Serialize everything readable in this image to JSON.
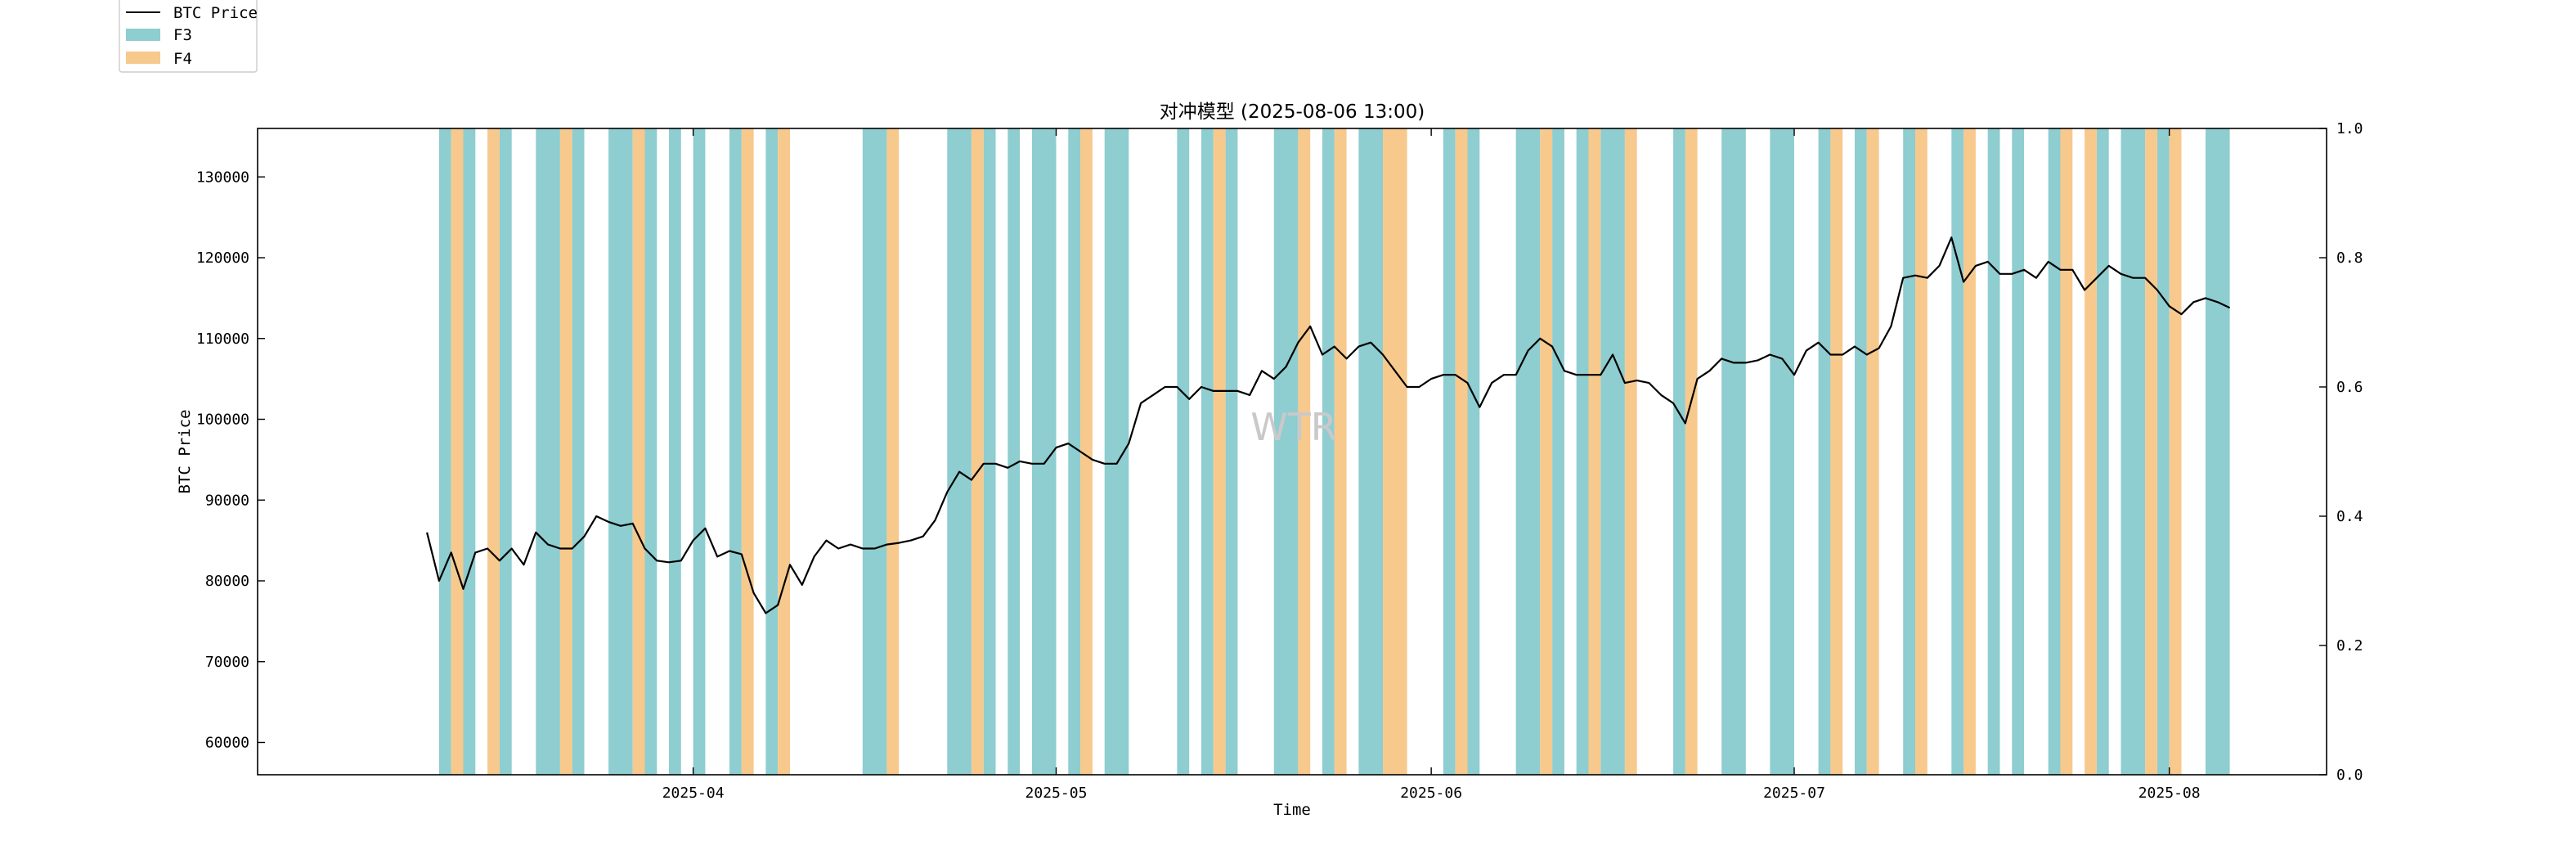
{
  "chart_data": {
    "type": "line",
    "title": "对冲模型 (2025-08-06 13:00)",
    "xlabel": "Time",
    "ylabel": "BTC Price",
    "watermark": "WTR",
    "x_tick_labels": [
      "2025-04",
      "2025-05",
      "2025-06",
      "2025-07",
      "2025-08"
    ],
    "x_ticks": [
      "2025-04-01",
      "2025-05-01",
      "2025-06-01",
      "2025-07-01",
      "2025-08-01"
    ],
    "xlim": [
      "2025-02-24",
      "2025-08-14"
    ],
    "ylim": [
      56000,
      136000
    ],
    "y_ticks": [
      60000,
      70000,
      80000,
      90000,
      100000,
      110000,
      120000,
      130000
    ],
    "y2lim": [
      0.0,
      1.0
    ],
    "y2_ticks": [
      0.0,
      0.2,
      0.4,
      0.6,
      0.8,
      1.0
    ],
    "y2_tick_labels": [
      "0.0",
      "0.2",
      "0.4",
      "0.6",
      "0.8",
      "1.0"
    ],
    "grid": false,
    "legend": {
      "placement": "top-left, above plot",
      "entries": [
        {
          "label": "BTC Price",
          "kind": "line",
          "color": "#000000"
        },
        {
          "label": "F3",
          "kind": "patch",
          "color": "#8ecdd0"
        },
        {
          "label": "F4",
          "kind": "patch",
          "color": "#f7c98d"
        }
      ]
    },
    "series": [
      {
        "name": "BTC Price",
        "color": "#000000",
        "points": [
          [
            "2025-03-10",
            86000
          ],
          [
            "2025-03-11",
            80000
          ],
          [
            "2025-03-12",
            83500
          ],
          [
            "2025-03-13",
            79000
          ],
          [
            "2025-03-14",
            83500
          ],
          [
            "2025-03-15",
            84000
          ],
          [
            "2025-03-16",
            82500
          ],
          [
            "2025-03-17",
            84000
          ],
          [
            "2025-03-18",
            82000
          ],
          [
            "2025-03-19",
            86000
          ],
          [
            "2025-03-20",
            84500
          ],
          [
            "2025-03-21",
            84000
          ],
          [
            "2025-03-22",
            84000
          ],
          [
            "2025-03-23",
            85500
          ],
          [
            "2025-03-24",
            88000
          ],
          [
            "2025-03-25",
            87300
          ],
          [
            "2025-03-26",
            86800
          ],
          [
            "2025-03-27",
            87100
          ],
          [
            "2025-03-28",
            84000
          ],
          [
            "2025-03-29",
            82500
          ],
          [
            "2025-03-30",
            82300
          ],
          [
            "2025-03-31",
            82500
          ],
          [
            "2025-04-01",
            85000
          ],
          [
            "2025-04-02",
            86500
          ],
          [
            "2025-04-03",
            83000
          ],
          [
            "2025-04-04",
            83700
          ],
          [
            "2025-04-05",
            83300
          ],
          [
            "2025-04-06",
            78500
          ],
          [
            "2025-04-07",
            76000
          ],
          [
            "2025-04-08",
            77000
          ],
          [
            "2025-04-09",
            82000
          ],
          [
            "2025-04-10",
            79500
          ],
          [
            "2025-04-11",
            83000
          ],
          [
            "2025-04-12",
            85000
          ],
          [
            "2025-04-13",
            84000
          ],
          [
            "2025-04-14",
            84500
          ],
          [
            "2025-04-15",
            84000
          ],
          [
            "2025-04-16",
            84000
          ],
          [
            "2025-04-17",
            84500
          ],
          [
            "2025-04-18",
            84700
          ],
          [
            "2025-04-19",
            85000
          ],
          [
            "2025-04-20",
            85500
          ],
          [
            "2025-04-21",
            87500
          ],
          [
            "2025-04-22",
            91000
          ],
          [
            "2025-04-23",
            93500
          ],
          [
            "2025-04-24",
            92500
          ],
          [
            "2025-04-25",
            94500
          ],
          [
            "2025-04-26",
            94500
          ],
          [
            "2025-04-27",
            94000
          ],
          [
            "2025-04-28",
            94800
          ],
          [
            "2025-04-29",
            94500
          ],
          [
            "2025-04-30",
            94500
          ],
          [
            "2025-05-01",
            96500
          ],
          [
            "2025-05-02",
            97000
          ],
          [
            "2025-05-03",
            96000
          ],
          [
            "2025-05-04",
            95000
          ],
          [
            "2025-05-05",
            94500
          ],
          [
            "2025-05-06",
            94500
          ],
          [
            "2025-05-07",
            97000
          ],
          [
            "2025-05-08",
            102000
          ],
          [
            "2025-05-09",
            103000
          ],
          [
            "2025-05-10",
            104000
          ],
          [
            "2025-05-11",
            104000
          ],
          [
            "2025-05-12",
            102500
          ],
          [
            "2025-05-13",
            104000
          ],
          [
            "2025-05-14",
            103500
          ],
          [
            "2025-05-15",
            103500
          ],
          [
            "2025-05-16",
            103500
          ],
          [
            "2025-05-17",
            103000
          ],
          [
            "2025-05-18",
            106000
          ],
          [
            "2025-05-19",
            105000
          ],
          [
            "2025-05-20",
            106500
          ],
          [
            "2025-05-21",
            109500
          ],
          [
            "2025-05-22",
            111500
          ],
          [
            "2025-05-23",
            108000
          ],
          [
            "2025-05-24",
            109000
          ],
          [
            "2025-05-25",
            107500
          ],
          [
            "2025-05-26",
            109000
          ],
          [
            "2025-05-27",
            109500
          ],
          [
            "2025-05-28",
            108000
          ],
          [
            "2025-05-29",
            106000
          ],
          [
            "2025-05-30",
            104000
          ],
          [
            "2025-05-31",
            104000
          ],
          [
            "2025-06-01",
            105000
          ],
          [
            "2025-06-02",
            105500
          ],
          [
            "2025-06-03",
            105500
          ],
          [
            "2025-06-04",
            104500
          ],
          [
            "2025-06-05",
            101500
          ],
          [
            "2025-06-06",
            104500
          ],
          [
            "2025-06-07",
            105500
          ],
          [
            "2025-06-08",
            105500
          ],
          [
            "2025-06-09",
            108500
          ],
          [
            "2025-06-10",
            110000
          ],
          [
            "2025-06-11",
            109000
          ],
          [
            "2025-06-12",
            106000
          ],
          [
            "2025-06-13",
            105500
          ],
          [
            "2025-06-14",
            105500
          ],
          [
            "2025-06-15",
            105500
          ],
          [
            "2025-06-16",
            108000
          ],
          [
            "2025-06-17",
            104500
          ],
          [
            "2025-06-18",
            104800
          ],
          [
            "2025-06-19",
            104500
          ],
          [
            "2025-06-20",
            103000
          ],
          [
            "2025-06-21",
            102000
          ],
          [
            "2025-06-22",
            99500
          ],
          [
            "2025-06-23",
            105000
          ],
          [
            "2025-06-24",
            106000
          ],
          [
            "2025-06-25",
            107500
          ],
          [
            "2025-06-26",
            107000
          ],
          [
            "2025-06-27",
            107000
          ],
          [
            "2025-06-28",
            107300
          ],
          [
            "2025-06-29",
            108000
          ],
          [
            "2025-06-30",
            107500
          ],
          [
            "2025-07-01",
            105500
          ],
          [
            "2025-07-02",
            108500
          ],
          [
            "2025-07-03",
            109500
          ],
          [
            "2025-07-04",
            108000
          ],
          [
            "2025-07-05",
            108000
          ],
          [
            "2025-07-06",
            109000
          ],
          [
            "2025-07-07",
            108000
          ],
          [
            "2025-07-08",
            108800
          ],
          [
            "2025-07-09",
            111500
          ],
          [
            "2025-07-10",
            117500
          ],
          [
            "2025-07-11",
            117800
          ],
          [
            "2025-07-12",
            117500
          ],
          [
            "2025-07-13",
            119000
          ],
          [
            "2025-07-14",
            122500
          ],
          [
            "2025-07-15",
            117000
          ],
          [
            "2025-07-16",
            119000
          ],
          [
            "2025-07-17",
            119500
          ],
          [
            "2025-07-18",
            118000
          ],
          [
            "2025-07-19",
            118000
          ],
          [
            "2025-07-20",
            118500
          ],
          [
            "2025-07-21",
            117500
          ],
          [
            "2025-07-22",
            119500
          ],
          [
            "2025-07-23",
            118500
          ],
          [
            "2025-07-24",
            118500
          ],
          [
            "2025-07-25",
            116000
          ],
          [
            "2025-07-26",
            117500
          ],
          [
            "2025-07-27",
            119000
          ],
          [
            "2025-07-28",
            118000
          ],
          [
            "2025-07-29",
            117500
          ],
          [
            "2025-07-30",
            117500
          ],
          [
            "2025-07-31",
            116000
          ],
          [
            "2025-08-01",
            114000
          ],
          [
            "2025-08-02",
            113000
          ],
          [
            "2025-08-03",
            114500
          ],
          [
            "2025-08-04",
            115000
          ],
          [
            "2025-08-05",
            114500
          ],
          [
            "2025-08-06",
            113800
          ]
        ]
      },
      {
        "name": "F3",
        "color": "#8ecdd0",
        "kind": "shaded-spans",
        "spans": [
          [
            "2025-03-11",
            "2025-03-12"
          ],
          [
            "2025-03-13",
            "2025-03-14"
          ],
          [
            "2025-03-16",
            "2025-03-17"
          ],
          [
            "2025-03-19",
            "2025-03-21"
          ],
          [
            "2025-03-22",
            "2025-03-23"
          ],
          [
            "2025-03-25",
            "2025-03-27"
          ],
          [
            "2025-03-28",
            "2025-03-29"
          ],
          [
            "2025-03-30",
            "2025-03-31"
          ],
          [
            "2025-04-01",
            "2025-04-02"
          ],
          [
            "2025-04-04",
            "2025-04-05"
          ],
          [
            "2025-04-07",
            "2025-04-08"
          ],
          [
            "2025-04-15",
            "2025-04-17"
          ],
          [
            "2025-04-22",
            "2025-04-24"
          ],
          [
            "2025-04-25",
            "2025-04-26"
          ],
          [
            "2025-04-27",
            "2025-04-28"
          ],
          [
            "2025-04-29",
            "2025-05-01"
          ],
          [
            "2025-05-02",
            "2025-05-03"
          ],
          [
            "2025-05-05",
            "2025-05-07"
          ],
          [
            "2025-05-11",
            "2025-05-12"
          ],
          [
            "2025-05-13",
            "2025-05-14"
          ],
          [
            "2025-05-15",
            "2025-05-16"
          ],
          [
            "2025-05-19",
            "2025-05-21"
          ],
          [
            "2025-05-23",
            "2025-05-24"
          ],
          [
            "2025-05-26",
            "2025-05-28"
          ],
          [
            "2025-06-02",
            "2025-06-03"
          ],
          [
            "2025-06-04",
            "2025-06-05"
          ],
          [
            "2025-06-08",
            "2025-06-10"
          ],
          [
            "2025-06-11",
            "2025-06-12"
          ],
          [
            "2025-06-13",
            "2025-06-14"
          ],
          [
            "2025-06-15",
            "2025-06-17"
          ],
          [
            "2025-06-21",
            "2025-06-22"
          ],
          [
            "2025-06-25",
            "2025-06-27"
          ],
          [
            "2025-06-29",
            "2025-07-01"
          ],
          [
            "2025-07-03",
            "2025-07-04"
          ],
          [
            "2025-07-06",
            "2025-07-07"
          ],
          [
            "2025-07-10",
            "2025-07-11"
          ],
          [
            "2025-07-14",
            "2025-07-15"
          ],
          [
            "2025-07-17",
            "2025-07-18"
          ],
          [
            "2025-07-19",
            "2025-07-20"
          ],
          [
            "2025-07-22",
            "2025-07-23"
          ],
          [
            "2025-07-26",
            "2025-07-27"
          ],
          [
            "2025-07-28",
            "2025-07-30"
          ],
          [
            "2025-07-31",
            "2025-08-01"
          ],
          [
            "2025-08-04",
            "2025-08-06"
          ]
        ]
      },
      {
        "name": "F4",
        "color": "#f7c98d",
        "kind": "shaded-spans",
        "spans": [
          [
            "2025-03-12",
            "2025-03-13"
          ],
          [
            "2025-03-15",
            "2025-03-16"
          ],
          [
            "2025-03-21",
            "2025-03-22"
          ],
          [
            "2025-03-27",
            "2025-03-28"
          ],
          [
            "2025-04-05",
            "2025-04-06"
          ],
          [
            "2025-04-08",
            "2025-04-09"
          ],
          [
            "2025-04-17",
            "2025-04-18"
          ],
          [
            "2025-04-24",
            "2025-04-25"
          ],
          [
            "2025-05-03",
            "2025-05-04"
          ],
          [
            "2025-05-14",
            "2025-05-15"
          ],
          [
            "2025-05-21",
            "2025-05-22"
          ],
          [
            "2025-05-24",
            "2025-05-25"
          ],
          [
            "2025-05-28",
            "2025-05-30"
          ],
          [
            "2025-06-03",
            "2025-06-04"
          ],
          [
            "2025-06-10",
            "2025-06-11"
          ],
          [
            "2025-06-14",
            "2025-06-15"
          ],
          [
            "2025-06-17",
            "2025-06-18"
          ],
          [
            "2025-06-22",
            "2025-06-23"
          ],
          [
            "2025-07-04",
            "2025-07-05"
          ],
          [
            "2025-07-07",
            "2025-07-08"
          ],
          [
            "2025-07-11",
            "2025-07-12"
          ],
          [
            "2025-07-15",
            "2025-07-16"
          ],
          [
            "2025-07-23",
            "2025-07-24"
          ],
          [
            "2025-07-25",
            "2025-07-26"
          ],
          [
            "2025-07-30",
            "2025-07-31"
          ],
          [
            "2025-08-01",
            "2025-08-02"
          ]
        ]
      }
    ]
  }
}
